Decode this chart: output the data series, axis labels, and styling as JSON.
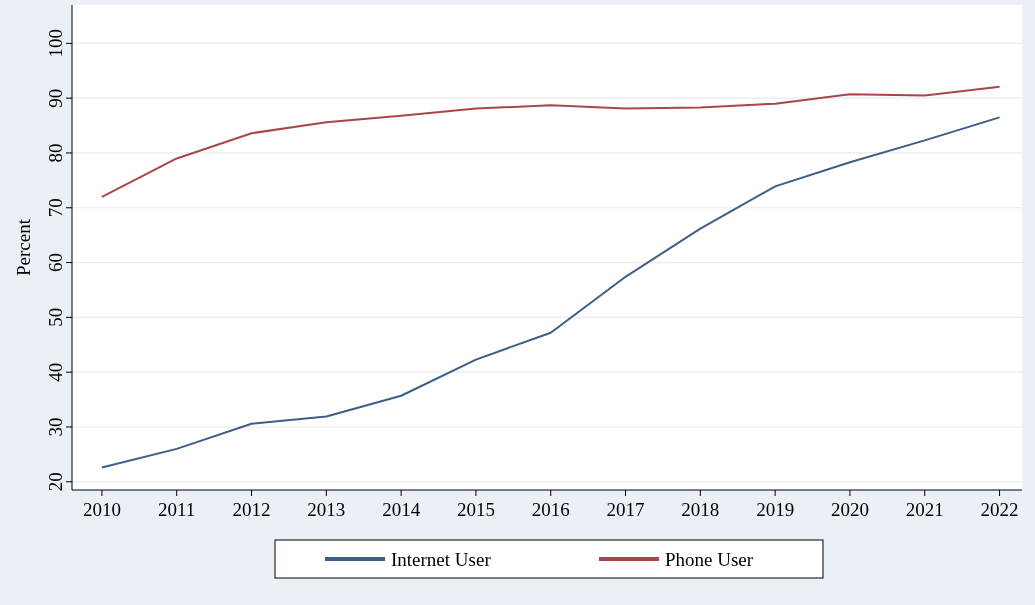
{
  "chart_data": {
    "type": "line",
    "ylabel": "Percent",
    "x": [
      2010,
      2011,
      2012,
      2013,
      2014,
      2015,
      2016,
      2017,
      2018,
      2019,
      2020,
      2021,
      2022
    ],
    "series": [
      {
        "name": "Internet User",
        "color": "#3c5f88",
        "values": [
          22.6,
          26,
          30.6,
          31.9,
          35.7,
          42.3,
          47.2,
          57.4,
          66.2,
          73.9,
          78.3,
          82.3,
          86.5
        ]
      },
      {
        "name": "Phone User",
        "color": "#a8464c",
        "values": [
          72,
          79,
          83.6,
          85.6,
          86.8,
          88.1,
          88.7,
          88.1,
          88.3,
          89,
          90.7,
          90.5,
          92.1
        ]
      }
    ],
    "xlim": [
      2009.6,
      2022.3
    ],
    "xticks": [
      2010,
      2011,
      2012,
      2013,
      2014,
      2015,
      2016,
      2017,
      2018,
      2019,
      2020,
      2021,
      2022
    ],
    "ylim": [
      18.5,
      107
    ],
    "yticks": [
      20,
      30,
      40,
      50,
      60,
      70,
      80,
      90,
      100
    ],
    "grid": "y",
    "legend": "bottom",
    "marker": "none",
    "line_style": "solid"
  }
}
